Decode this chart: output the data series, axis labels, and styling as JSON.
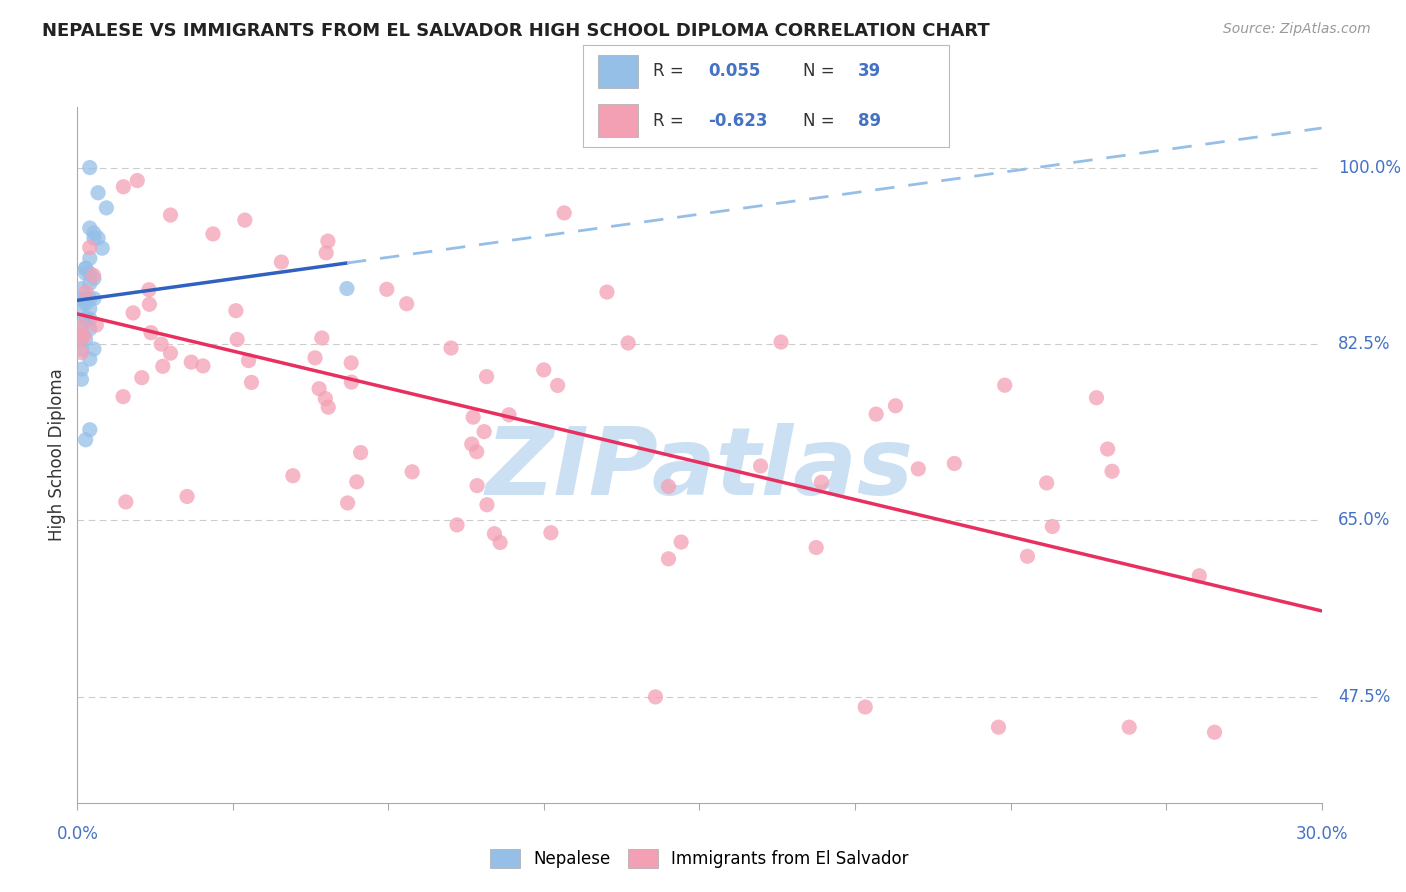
{
  "title": "NEPALESE VS IMMIGRANTS FROM EL SALVADOR HIGH SCHOOL DIPLOMA CORRELATION CHART",
  "source": "Source: ZipAtlas.com",
  "ylabel": "High School Diploma",
  "legend_label1": "Nepalese",
  "legend_label2": "Immigrants from El Salvador",
  "R1": 0.055,
  "N1": 39,
  "R2": -0.623,
  "N2": 89,
  "ytick_labels": [
    "100.0%",
    "82.5%",
    "65.0%",
    "47.5%"
  ],
  "ytick_values": [
    1.0,
    0.825,
    0.65,
    0.475
  ],
  "xmin": 0.0,
  "xmax": 0.3,
  "ymin": 0.37,
  "ymax": 1.06,
  "color_blue_scatter": "#96bfe8",
  "color_pink_scatter": "#f4a0b4",
  "color_blue_line": "#3060c0",
  "color_pink_line": "#e83060",
  "color_blue_dash": "#96bfe8",
  "color_axis_label": "#4472c4",
  "color_title": "#222222",
  "color_source": "#999999",
  "color_grid": "#cccccc",
  "background": "#ffffff",
  "watermark": "ZIPatlas",
  "watermark_color": "#cce0f4",
  "scatter_size": 120,
  "scatter_alpha": 0.75
}
